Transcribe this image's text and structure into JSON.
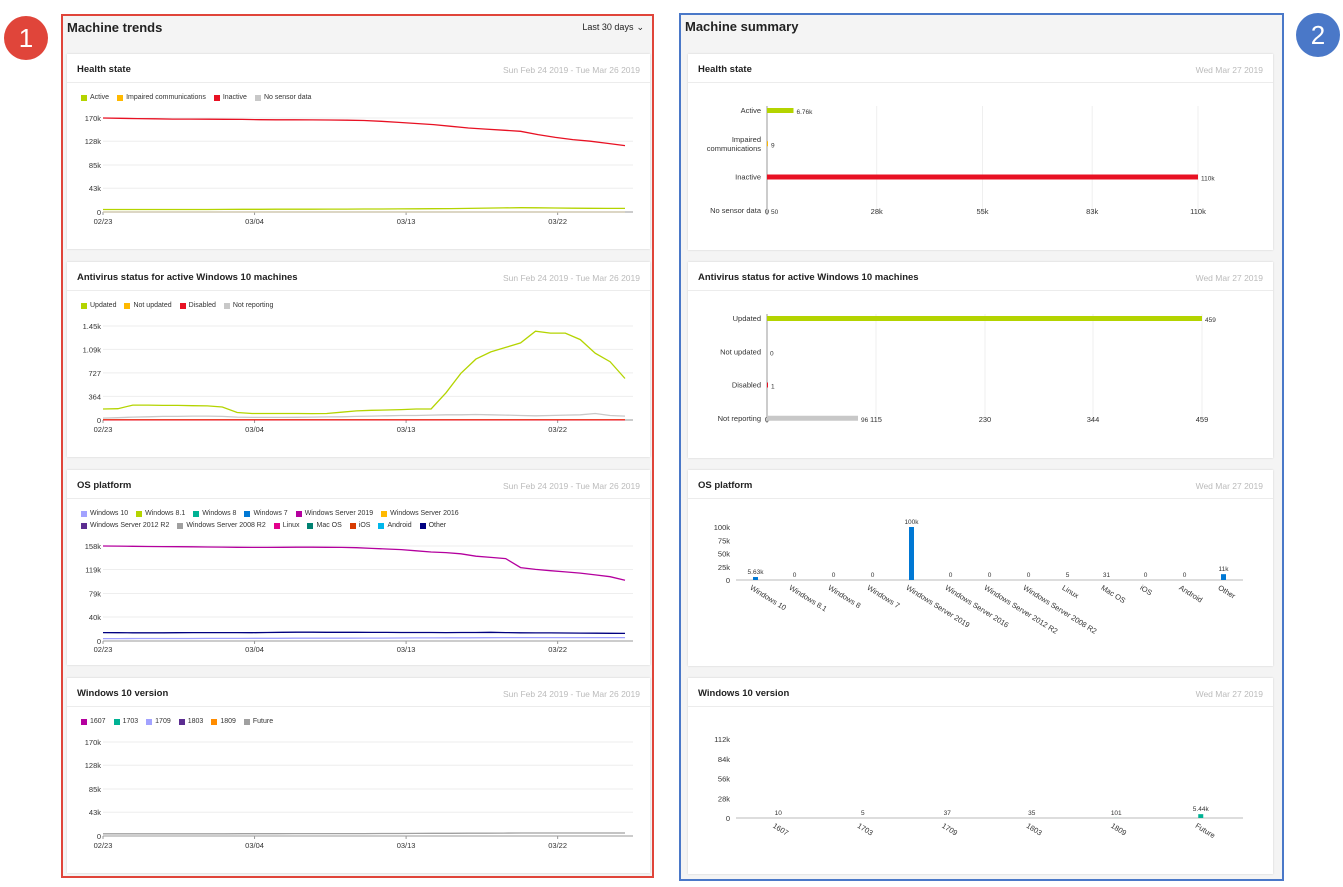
{
  "callouts": {
    "left": "1",
    "right": "2"
  },
  "trends": {
    "title": "Machine trends",
    "range": "Last 30 days",
    "date": "Sun Feb 24 2019 - Tue Mar 26 2019",
    "x_ticks": [
      "02/23",
      "03/04",
      "03/13",
      "03/22"
    ],
    "x_tick_days": [
      0,
      9,
      18,
      27
    ],
    "x_days": 31
  },
  "summary": {
    "title": "Machine summary",
    "date": "Wed Mar 27 2019"
  },
  "colors": {
    "active": "#b4d400",
    "impaired": "#ffb900",
    "inactive": "#e81123",
    "nosensor": "#c8c8c8",
    "blue": "#0078d4",
    "teal": "#00b294"
  },
  "chart_data": [
    {
      "id": "health_trend",
      "type": "line",
      "title": "Health state",
      "y_ticks": [
        "170k",
        "128k",
        "85k",
        "43k",
        "0"
      ],
      "y_tick_values": [
        170000,
        128000,
        85000,
        43000,
        0
      ],
      "ylim": [
        0,
        170000
      ],
      "series": [
        {
          "name": "Active",
          "color": "#b4d400",
          "values": [
            4500,
            4500,
            4500,
            4500,
            4500,
            4600,
            4600,
            4700,
            4800,
            4900,
            5000,
            5100,
            5100,
            5200,
            5300,
            5400,
            5500,
            5600,
            5700,
            5900,
            6200,
            6500,
            7000,
            7500,
            7800,
            7600,
            7200,
            6900,
            6700,
            6600,
            6500
          ]
        },
        {
          "name": "Impaired communications",
          "color": "#ffb900",
          "values": [
            50,
            50,
            50,
            50,
            50,
            50,
            50,
            50,
            50,
            50,
            50,
            50,
            50,
            50,
            50,
            50,
            50,
            50,
            50,
            50,
            50,
            50,
            50,
            50,
            50,
            50,
            50,
            50,
            50,
            50,
            50
          ]
        },
        {
          "name": "Inactive",
          "color": "#e81123",
          "values": [
            170000,
            169500,
            169000,
            168500,
            168000,
            168000,
            167800,
            167600,
            167400,
            167000,
            166800,
            166700,
            166500,
            166400,
            166000,
            165500,
            164000,
            162000,
            160000,
            158000,
            155000,
            152000,
            150000,
            148000,
            146000,
            140000,
            135000,
            131000,
            128000,
            124000,
            120000
          ]
        },
        {
          "name": "No sensor data",
          "color": "#c8c8c8",
          "values": [
            80,
            80,
            80,
            80,
            80,
            80,
            80,
            80,
            80,
            80,
            80,
            80,
            80,
            80,
            80,
            80,
            80,
            80,
            80,
            80,
            80,
            80,
            80,
            80,
            80,
            80,
            80,
            80,
            80,
            80,
            80
          ]
        }
      ]
    },
    {
      "id": "av_trend",
      "type": "line",
      "title": "Antivirus status for active Windows 10 machines",
      "y_ticks": [
        "1.45k",
        "1.09k",
        "727",
        "364",
        "0"
      ],
      "y_tick_values": [
        1450,
        1090,
        727,
        364,
        0
      ],
      "ylim": [
        0,
        1450
      ],
      "series": [
        {
          "name": "Updated",
          "color": "#b4d400",
          "values": [
            170,
            175,
            230,
            230,
            225,
            225,
            220,
            218,
            200,
            115,
            100,
            100,
            100,
            100,
            98,
            100,
            120,
            140,
            150,
            155,
            160,
            170,
            170,
            420,
            720,
            940,
            1050,
            1120,
            1190,
            1370,
            1340,
            1340,
            1240,
            1030,
            900,
            640
          ]
        },
        {
          "name": "Not updated",
          "color": "#ffb900",
          "values": [
            3,
            3,
            3,
            3,
            3,
            3,
            3,
            3,
            3,
            3,
            3,
            3,
            3,
            3,
            3,
            3,
            3,
            3,
            3,
            3,
            3,
            3,
            3,
            3,
            3,
            3,
            3,
            3,
            3,
            3,
            3,
            3,
            3,
            3,
            3,
            3
          ]
        },
        {
          "name": "Disabled",
          "color": "#e81123",
          "values": [
            1,
            1,
            1,
            1,
            1,
            1,
            1,
            1,
            1,
            1,
            1,
            1,
            1,
            1,
            1,
            1,
            1,
            1,
            1,
            1,
            1,
            1,
            1,
            1,
            1,
            1,
            1,
            1,
            1,
            1,
            1,
            1,
            1,
            1,
            1,
            1
          ]
        },
        {
          "name": "Not reporting",
          "color": "#c8c8c8",
          "values": [
            30,
            35,
            45,
            50,
            55,
            55,
            60,
            60,
            55,
            45,
            40,
            40,
            40,
            42,
            45,
            48,
            50,
            55,
            60,
            65,
            70,
            70,
            75,
            80,
            80,
            85,
            80,
            75,
            70,
            65,
            70,
            75,
            80,
            100,
            70,
            60
          ]
        }
      ]
    },
    {
      "id": "os_trend",
      "type": "line",
      "title": "OS platform",
      "y_ticks": [
        "158k",
        "119k",
        "79k",
        "40k",
        "0"
      ],
      "y_tick_values": [
        158000,
        119000,
        79000,
        40000,
        0
      ],
      "ylim": [
        0,
        158000
      ],
      "series": [
        {
          "name": "Windows 10",
          "color": "#a2a2ff",
          "values": [
            4000,
            4000,
            4100,
            4100,
            4200,
            4200,
            4300,
            4300,
            4400,
            4500,
            4500,
            4600,
            4600,
            4700,
            4700,
            4800,
            4900,
            5000,
            5100,
            5200,
            5300,
            5400,
            5500,
            5600,
            5600,
            5600,
            5600,
            5600,
            5600,
            5600,
            5600
          ]
        },
        {
          "name": "Windows 8.1",
          "color": "#b4d400",
          "values": []
        },
        {
          "name": "Windows 8",
          "color": "#00b294",
          "values": []
        },
        {
          "name": "Windows 7",
          "color": "#0078d4",
          "values": []
        },
        {
          "name": "Windows Server 2019",
          "color": "#b4009e",
          "values": [
            158000,
            157800,
            157500,
            157200,
            157000,
            156800,
            156600,
            156400,
            156200,
            155800,
            155600,
            155600,
            155800,
            156000,
            156000,
            155800,
            155600,
            155200,
            154000,
            153000,
            152000,
            150000,
            148000,
            147000,
            145000,
            141000,
            139000,
            137000,
            122000,
            119000,
            117000,
            115000,
            113000,
            110000,
            107000,
            101000
          ]
        },
        {
          "name": "Windows Server 2016",
          "color": "#ffb900",
          "values": []
        },
        {
          "name": "Windows Server 2012 R2",
          "color": "#5c2d91",
          "values": []
        },
        {
          "name": "Windows Server 2008 R2",
          "color": "#a0a0a0",
          "values": []
        },
        {
          "name": "Linux",
          "color": "#e3008c",
          "values": []
        },
        {
          "name": "Mac OS",
          "color": "#008272",
          "values": []
        },
        {
          "name": "iOS",
          "color": "#d83b01",
          "values": []
        },
        {
          "name": "Android",
          "color": "#00b7eb",
          "values": []
        },
        {
          "name": "Other",
          "color": "#000080",
          "values": [
            14000,
            13800,
            13600,
            13600,
            13700,
            13800,
            13900,
            14000,
            14000,
            13900,
            13800,
            14200,
            14500,
            14600,
            14600,
            14500,
            14400,
            14400,
            14300,
            14300,
            14200,
            14200,
            14100,
            14000,
            14100,
            14200,
            14400,
            14000,
            13600,
            13500,
            13400,
            13300,
            13200,
            13000,
            12800,
            12600
          ]
        }
      ]
    },
    {
      "id": "win10_trend",
      "type": "line",
      "title": "Windows 10 version",
      "y_ticks": [
        "170k",
        "128k",
        "85k",
        "43k",
        "0"
      ],
      "y_tick_values": [
        170000,
        128000,
        85000,
        43000,
        0
      ],
      "ylim": [
        0,
        170000
      ],
      "series": [
        {
          "name": "1607",
          "color": "#b4009e",
          "values": []
        },
        {
          "name": "1703",
          "color": "#00b294",
          "values": []
        },
        {
          "name": "1709",
          "color": "#a2a2ff",
          "values": []
        },
        {
          "name": "1803",
          "color": "#5c2d91",
          "values": []
        },
        {
          "name": "1809",
          "color": "#ff8c00",
          "values": []
        },
        {
          "name": "Future",
          "color": "#a0a0a0",
          "values": [
            4000,
            4000,
            4000,
            4000,
            4000,
            4000,
            4000,
            4000,
            4100,
            4200,
            4200,
            4300,
            4300,
            4300,
            4400,
            4400,
            4500,
            4600,
            4700,
            4800,
            4900,
            5000,
            5100,
            5300,
            5400,
            5400,
            5400,
            5400,
            5400,
            5400,
            5400
          ]
        }
      ]
    },
    {
      "id": "health_summary",
      "type": "bar",
      "orientation": "horizontal",
      "title": "Health state",
      "categories": [
        "Active",
        "Impaired communications",
        "Inactive",
        "No sensor data"
      ],
      "category_lines": [
        [
          "Active"
        ],
        [
          "Impaired",
          "communications"
        ],
        [
          "Inactive"
        ],
        [
          "No sensor data"
        ]
      ],
      "values": [
        6760,
        9,
        110000,
        50
      ],
      "labels": [
        "6.76k",
        "9",
        "110k",
        "50"
      ],
      "colors": [
        "#b4d400",
        "#ffb900",
        "#e81123",
        "#c8c8c8"
      ],
      "x_ticks": [
        "0",
        "28k",
        "55k",
        "83k",
        "110k"
      ],
      "x_tick_values": [
        0,
        28000,
        55000,
        83000,
        110000
      ],
      "xlim": [
        0,
        110000
      ]
    },
    {
      "id": "av_summary",
      "type": "bar",
      "orientation": "horizontal",
      "title": "Antivirus status for active Windows 10 machines",
      "categories": [
        "Updated",
        "Not updated",
        "Disabled",
        "Not reporting"
      ],
      "category_lines": [
        [
          "Updated"
        ],
        [
          "Not updated"
        ],
        [
          "Disabled"
        ],
        [
          "Not reporting"
        ]
      ],
      "values": [
        459,
        0,
        1,
        96
      ],
      "labels": [
        "459",
        "0",
        "1",
        "96"
      ],
      "colors": [
        "#b4d400",
        "#ffb900",
        "#e81123",
        "#c8c8c8"
      ],
      "x_ticks": [
        "0",
        "115",
        "230",
        "344",
        "459"
      ],
      "x_tick_values": [
        0,
        115,
        230,
        344,
        459
      ],
      "xlim": [
        0,
        459
      ]
    },
    {
      "id": "os_summary",
      "type": "bar",
      "title": "OS platform",
      "categories": [
        "Windows 10",
        "Windows 8.1",
        "Windows 8",
        "Windows 7",
        "Windows Server 2019",
        "Windows Server 2016",
        "Windows Server 2012 R2",
        "Windows Server 2008 R2",
        "Linux",
        "Mac OS",
        "iOS",
        "Android",
        "Other"
      ],
      "values": [
        5630,
        0,
        0,
        0,
        100000,
        0,
        0,
        0,
        5,
        31,
        0,
        0,
        11000
      ],
      "labels": [
        "5.63k",
        "0",
        "0",
        "0",
        "100k",
        "0",
        "0",
        "0",
        "5",
        "31",
        "0",
        "0",
        "11k"
      ],
      "color": "#0078d4",
      "y_ticks": [
        "100k",
        "75k",
        "50k",
        "25k",
        "0"
      ],
      "y_tick_values": [
        100000,
        75000,
        50000,
        25000,
        0
      ],
      "ylim": [
        0,
        100000
      ]
    },
    {
      "id": "win10_summary",
      "type": "bar",
      "title": "Windows 10 version",
      "categories": [
        "1607",
        "1703",
        "1709",
        "1803",
        "1809",
        "Future"
      ],
      "values": [
        10,
        5,
        37,
        35,
        101,
        5440
      ],
      "labels": [
        "10",
        "5",
        "37",
        "35",
        "101",
        "5.44k"
      ],
      "color": "#00b294",
      "y_ticks": [
        "112k",
        "84k",
        "56k",
        "28k",
        "0"
      ],
      "y_tick_values": [
        112000,
        84000,
        56000,
        28000,
        0
      ],
      "ylim": [
        0,
        112000
      ]
    }
  ]
}
